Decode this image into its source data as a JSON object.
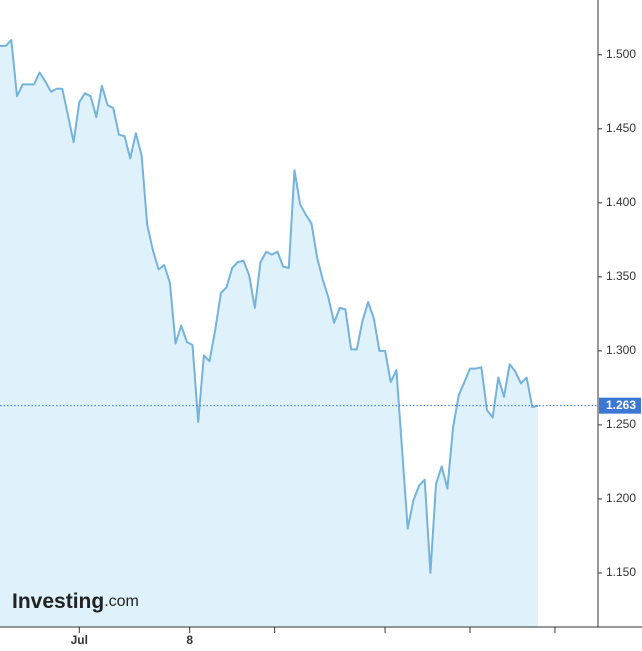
{
  "chart_data": {
    "type": "area",
    "logo": "Investing",
    "logo_suffix": ".com",
    "values": [
      1.506,
      1.506,
      1.51,
      1.472,
      1.48,
      1.48,
      1.48,
      1.488,
      1.482,
      1.475,
      1.477,
      1.477,
      1.459,
      1.441,
      1.468,
      1.474,
      1.472,
      1.458,
      1.479,
      1.466,
      1.464,
      1.446,
      1.445,
      1.43,
      1.447,
      1.432,
      1.385,
      1.368,
      1.355,
      1.358,
      1.346,
      1.305,
      1.317,
      1.306,
      1.304,
      1.252,
      1.297,
      1.293,
      1.314,
      1.339,
      1.343,
      1.356,
      1.36,
      1.361,
      1.351,
      1.329,
      1.36,
      1.367,
      1.365,
      1.367,
      1.357,
      1.356,
      1.422,
      1.399,
      1.392,
      1.386,
      1.363,
      1.348,
      1.336,
      1.319,
      1.329,
      1.328,
      1.301,
      1.301,
      1.32,
      1.333,
      1.322,
      1.3,
      1.3,
      1.279,
      1.287,
      1.233,
      1.18,
      1.199,
      1.209,
      1.213,
      1.15,
      1.21,
      1.222,
      1.207,
      1.248,
      1.27,
      1.279,
      1.288,
      1.288,
      1.289,
      1.26,
      1.255,
      1.282,
      1.269,
      1.291,
      1.286,
      1.278,
      1.282,
      1.262,
      1.263
    ],
    "color": "#74b3dc",
    "fill": "#dff2fb",
    "last_value": 1.263,
    "last_value_color": "#3b78d4",
    "xlim": [
      0,
      105.6
    ],
    "xticks": [
      {
        "value": 14,
        "label": "Jul"
      },
      {
        "value": 33.5,
        "label": "8"
      },
      {
        "value": 48.5,
        "label": null
      },
      {
        "value": 68,
        "label": null
      },
      {
        "value": 83,
        "label": null
      },
      {
        "value": 98,
        "label": null
      }
    ],
    "ylim": [
      1.1135,
      1.537
    ],
    "yticks": [
      {
        "value": 1.15,
        "label": "1.150"
      },
      {
        "value": 1.2,
        "label": "1.200"
      },
      {
        "value": 1.25,
        "label": "1.250"
      },
      {
        "value": 1.3,
        "label": "1.300"
      },
      {
        "value": 1.35,
        "label": "1.350"
      },
      {
        "value": 1.4,
        "label": "1.400"
      },
      {
        "value": 1.45,
        "label": "1.450"
      },
      {
        "value": 1.5,
        "label": "1.500"
      }
    ]
  }
}
